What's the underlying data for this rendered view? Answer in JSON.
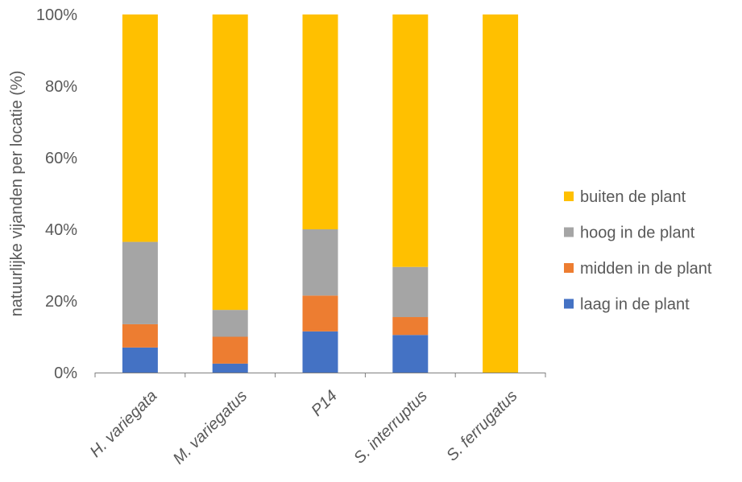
{
  "chart_data": {
    "type": "bar",
    "stacked": true,
    "percent": true,
    "categories": [
      "H. variegata",
      "M. variegatus",
      "P14",
      "S. interruptus",
      "S. ferrugatus"
    ],
    "series": [
      {
        "name": "laag in de plant",
        "values": [
          7,
          2.5,
          11.5,
          10.5,
          0
        ],
        "color": "#4472C4"
      },
      {
        "name": "midden in de plant",
        "values": [
          6.5,
          7.5,
          10,
          5,
          0
        ],
        "color": "#ED7D31"
      },
      {
        "name": "hoog in de plant",
        "values": [
          23,
          7.5,
          18.5,
          14,
          0
        ],
        "color": "#A5A5A5"
      },
      {
        "name": "buiten de plant",
        "values": [
          63.5,
          82.5,
          60,
          70.5,
          100
        ],
        "color": "#FFC000"
      }
    ],
    "ylabel": "natuurlijke vijanden per locatie (%)",
    "ylim": [
      0,
      100
    ],
    "yticks": [
      "0%",
      "20%",
      "40%",
      "60%",
      "80%",
      "100%"
    ],
    "grid": false,
    "legend_position": "right",
    "legend_order": [
      "buiten de plant",
      "hoog in de plant",
      "midden in de plant",
      "laag in de plant"
    ]
  }
}
